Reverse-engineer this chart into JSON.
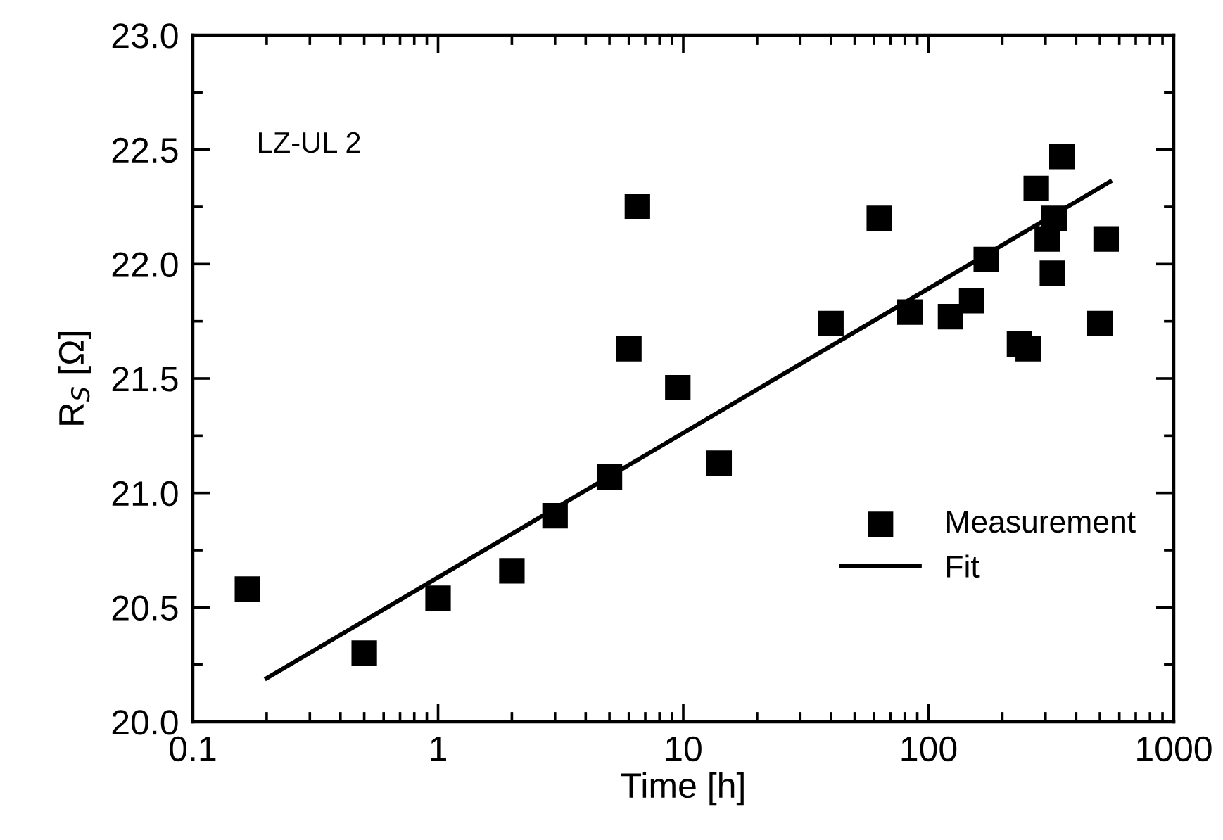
{
  "chart_data": {
    "type": "scatter",
    "xlabel": "Time [h]",
    "ylabel": "R$_{S}$ [Ω]",
    "log": "x",
    "xlim": [
      0.1,
      1000
    ],
    "xticks": [
      0.1,
      1,
      10,
      100,
      1000
    ],
    "ylim": [
      20.0,
      23.0
    ],
    "yticks": [
      {
        "value": 20.0,
        "label": "20.0"
      },
      {
        "value": 20.5,
        "label": "20.5"
      },
      {
        "value": 21.0,
        "label": "21.0"
      },
      {
        "value": 21.5,
        "label": "21.5"
      },
      {
        "value": 22.0,
        "label": "22.0"
      },
      {
        "value": 22.5,
        "label": "22.5"
      },
      {
        "value": 23.0,
        "label": "23.0"
      }
    ],
    "annotations": [
      "LZ-UL 2"
    ],
    "legend": "bottom right",
    "grid": false,
    "series": [
      {
        "name": "Measurement",
        "marker": "square",
        "color": "#000000",
        "x": [
          0.167,
          0.5,
          1,
          2,
          3,
          5,
          6,
          6.5,
          9.5,
          14,
          40,
          63,
          84,
          123,
          150,
          172,
          235,
          255,
          275,
          305,
          320,
          325,
          350,
          500,
          530
        ],
        "values": [
          20.58,
          20.3,
          20.54,
          20.66,
          20.9,
          21.07,
          21.63,
          22.25,
          21.46,
          21.13,
          21.74,
          22.2,
          21.79,
          21.77,
          21.84,
          22.02,
          21.65,
          21.63,
          22.33,
          22.11,
          21.96,
          22.2,
          22.47,
          21.74,
          22.11
        ]
      },
      {
        "name": "Fit",
        "type": "line",
        "line_style": "solid",
        "color": "#000000",
        "x": [
          0.2,
          550
        ],
        "values": [
          20.19,
          22.36
        ]
      }
    ]
  }
}
